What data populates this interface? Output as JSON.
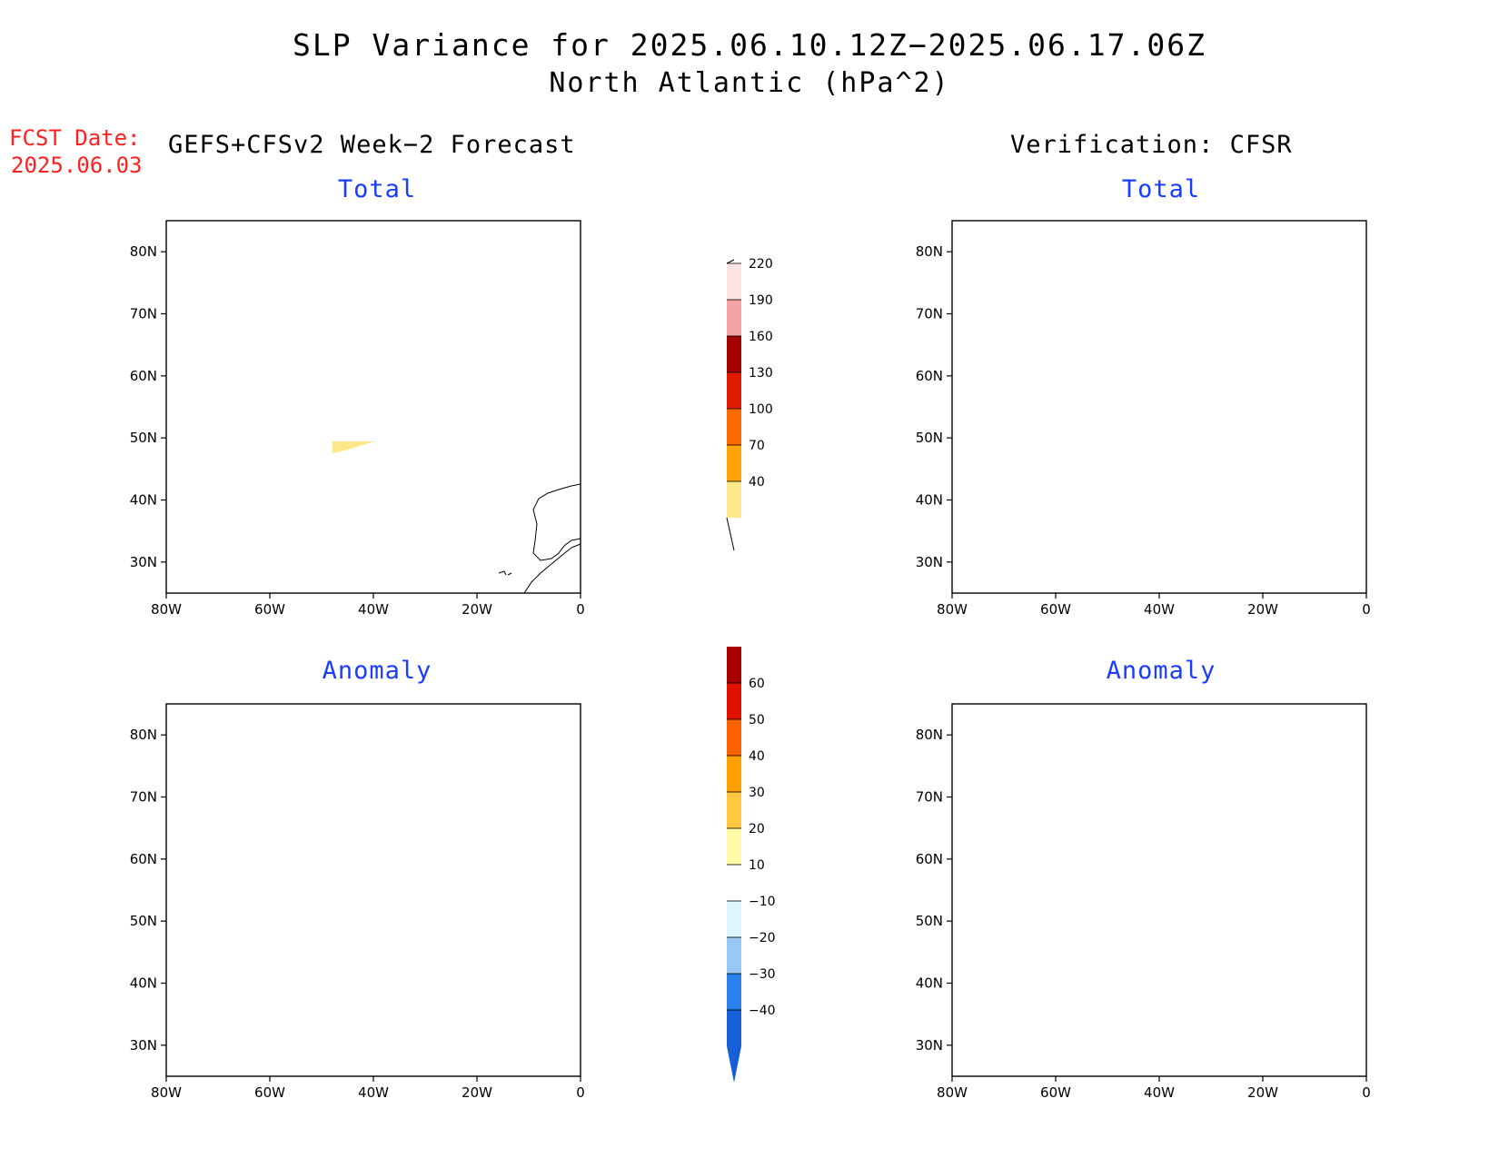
{
  "title": {
    "line1": "SLP Variance for 2025.06.10.12Z−2025.06.17.06Z",
    "line2": "North Atlantic (hPa^2)"
  },
  "forecast_date": {
    "label": "FCST Date:",
    "value": "2025.06.03"
  },
  "headers": {
    "left": "GEFS+CFSv2 Week−2 Forecast",
    "right": "Verification: CFSR"
  },
  "panels": {
    "forecast_total": "Total",
    "verification_total": "Total",
    "forecast_anomaly": "Anomaly",
    "verification_anomaly": "Anomaly"
  },
  "axes": {
    "lat_labels": [
      "80N",
      "70N",
      "60N",
      "50N",
      "40N",
      "30N"
    ],
    "lon_labels": [
      "80W",
      "60W",
      "40W",
      "20W",
      "0"
    ],
    "lat_values": [
      80,
      70,
      60,
      50,
      40,
      30
    ],
    "lon_values": [
      -80,
      -60,
      -40,
      -20,
      0
    ],
    "lat_range": [
      25,
      85
    ],
    "lon_range": [
      -80,
      0
    ]
  },
  "colorbar_total": {
    "labels": [
      "40",
      "70",
      "100",
      "130",
      "160",
      "190",
      "220"
    ],
    "colors": [
      "#fee68a",
      "#ffa40a",
      "#ff6a00",
      "#e01a00",
      "#a50000",
      "#f4a4a4",
      "#fde4e4"
    ]
  },
  "colorbar_anomaly": {
    "labels": [
      "−40",
      "−30",
      "−20",
      "−10",
      "10",
      "20",
      "30",
      "40",
      "50",
      "60"
    ],
    "colors": [
      "#1560d8",
      "#2a80ec",
      "#98c8f4",
      "#dcf6fc",
      "#ffffff",
      "#fffaa8",
      "#ffc840",
      "#ffa000",
      "#ff6000",
      "#e01000",
      "#a80000"
    ]
  }
}
